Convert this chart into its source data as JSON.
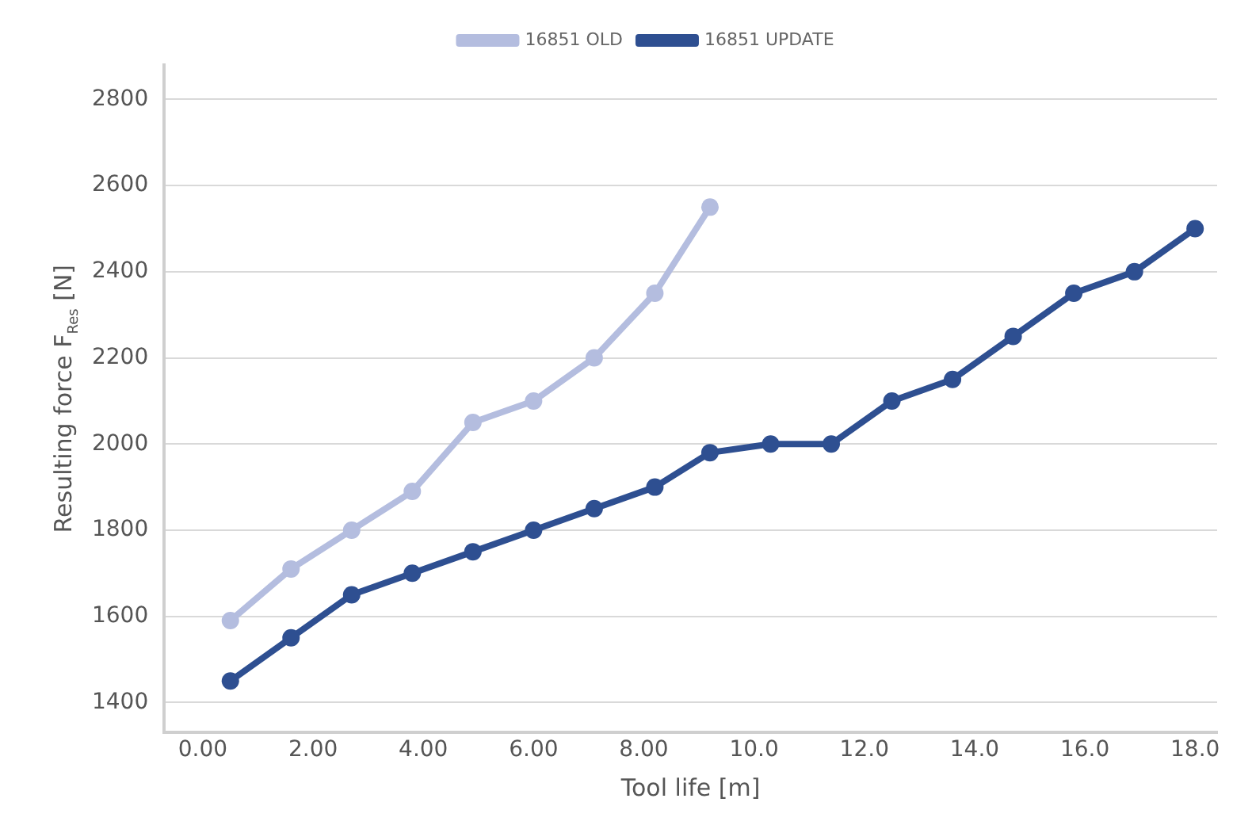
{
  "chart_data": {
    "type": "line",
    "xlabel": "Tool life [m]",
    "ylabel": "Resulting force F$_{Res}$ [N]",
    "series": [
      {
        "name": "16851 OLD",
        "color": "#b4bddf",
        "x": [
          0.5,
          1.6,
          2.7,
          3.8,
          4.9,
          6.0,
          7.1,
          8.2,
          9.2
        ],
        "values": [
          1590,
          1710,
          1800,
          1890,
          2050,
          2100,
          2200,
          2350,
          2550
        ]
      },
      {
        "name": "16851 UPDATE",
        "color": "#2e4f91",
        "x": [
          0.5,
          1.6,
          2.7,
          3.8,
          4.9,
          6.0,
          7.1,
          8.2,
          9.2,
          10.3,
          11.4,
          12.5,
          13.6,
          14.7,
          15.8,
          16.9,
          18.0
        ],
        "values": [
          1450,
          1550,
          1650,
          1700,
          1750,
          1800,
          1850,
          1900,
          1980,
          2000,
          2000,
          2100,
          2150,
          2250,
          2350,
          2400,
          2500
        ]
      }
    ],
    "xlim": [
      -0.7,
      18.4
    ],
    "xticks": [
      {
        "value": 0,
        "label": "0.00"
      },
      {
        "value": 2,
        "label": "2.00"
      },
      {
        "value": 4,
        "label": "4.00"
      },
      {
        "value": 6,
        "label": "6.00"
      },
      {
        "value": 8,
        "label": "8.00"
      },
      {
        "value": 10,
        "label": "10.0"
      },
      {
        "value": 12,
        "label": "12.0"
      },
      {
        "value": 14,
        "label": "14.0"
      },
      {
        "value": 16,
        "label": "16.0"
      },
      {
        "value": 18,
        "label": "18.0"
      }
    ],
    "ylim": [
      1330,
      2880
    ],
    "yticks": [
      1400,
      1600,
      1800,
      2000,
      2200,
      2400,
      2600,
      2800
    ],
    "grid": "y",
    "legend": "top",
    "marker": "circle",
    "line_style": "solid"
  }
}
